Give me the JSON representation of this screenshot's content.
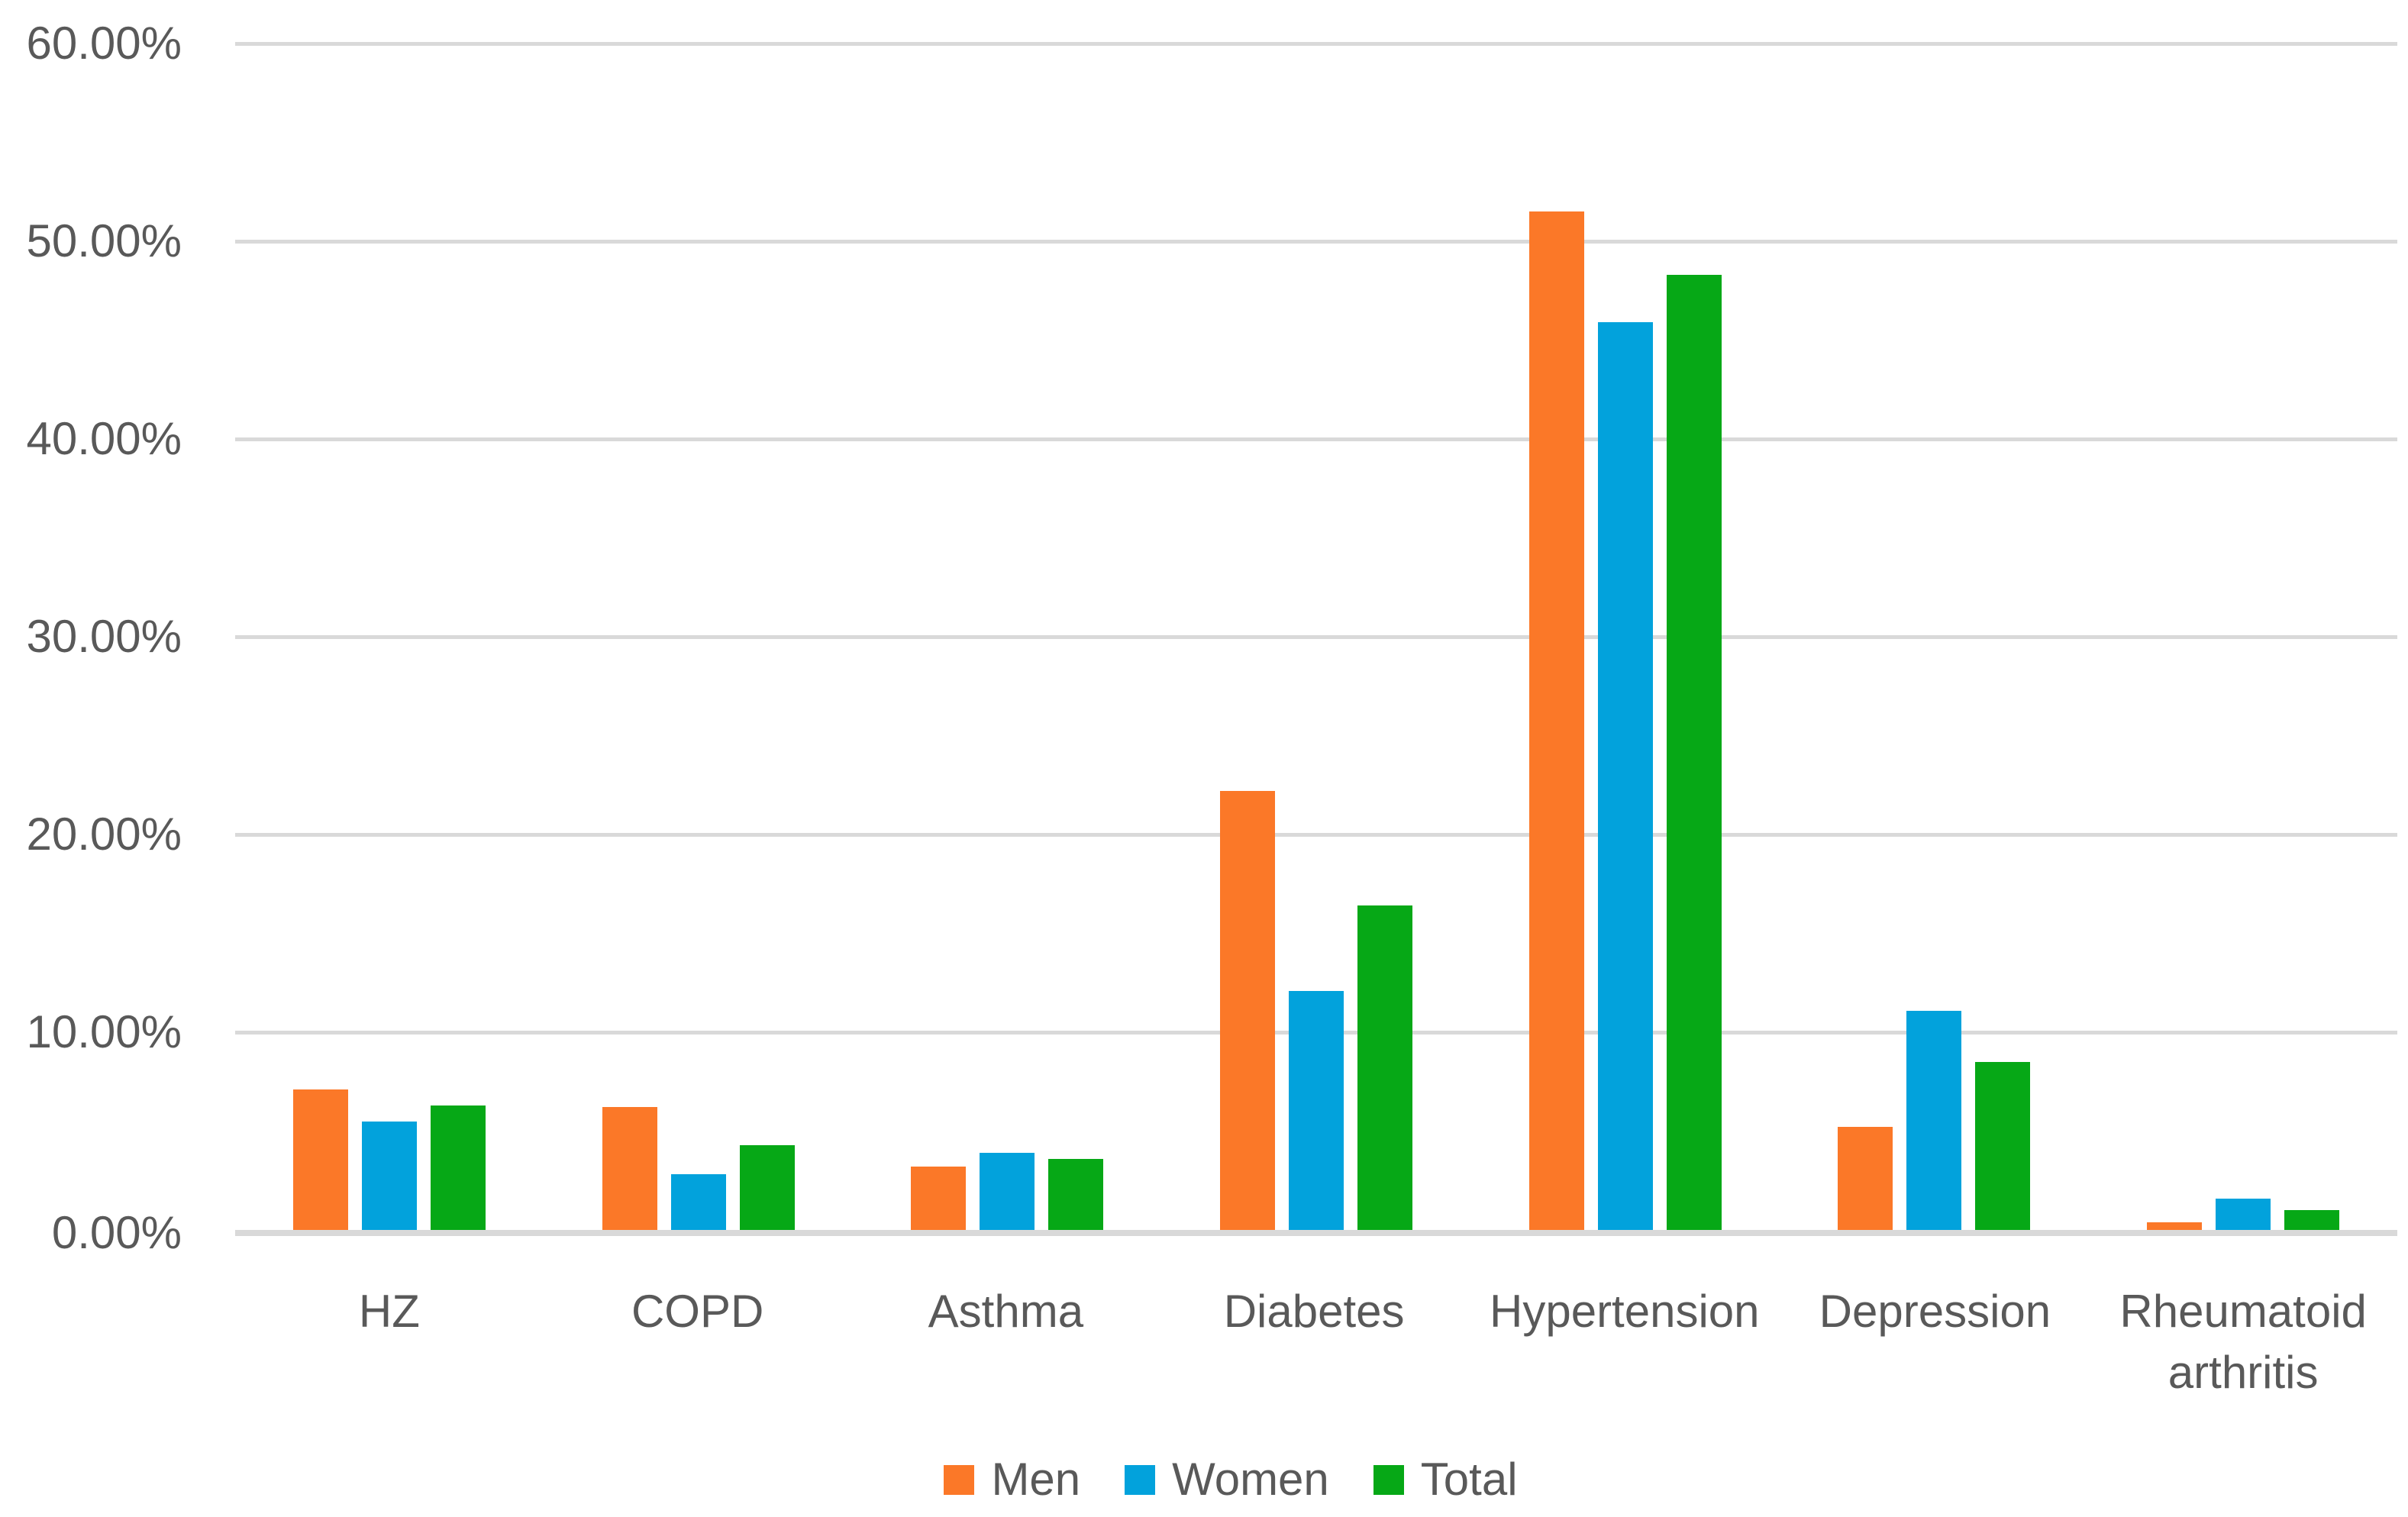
{
  "chart_data": {
    "type": "bar",
    "title": "",
    "xlabel": "",
    "ylabel": "",
    "categories": [
      "HZ",
      "COPD",
      "Asthma",
      "Diabetes",
      "Hypertension",
      "Depression",
      "Rheumatoid arthritis"
    ],
    "series": [
      {
        "name": "Men",
        "color": "#FB7828",
        "values": [
          7.1,
          6.2,
          3.2,
          22.2,
          51.5,
          5.2,
          0.4
        ]
      },
      {
        "name": "Women",
        "color": "#02A2DC",
        "values": [
          5.5,
          2.8,
          3.9,
          12.1,
          45.9,
          11.1,
          1.6
        ]
      },
      {
        "name": "Total",
        "color": "#06A816",
        "values": [
          6.3,
          4.3,
          3.6,
          16.4,
          48.3,
          8.5,
          1.0
        ]
      }
    ],
    "ylim": [
      0,
      60
    ],
    "y_tick_step": 10,
    "y_tick_labels": [
      "0.00%",
      "10.00%",
      "20.00%",
      "30.00%",
      "40.00%",
      "50.00%",
      "60.00%"
    ],
    "grid": true,
    "gridline_color": "#D9D9D9",
    "axis_text_color": "#595959",
    "background_color": "#FFFFFF",
    "legend_position": "bottom",
    "legend_labels": [
      "Men",
      "Women",
      "Total"
    ]
  }
}
